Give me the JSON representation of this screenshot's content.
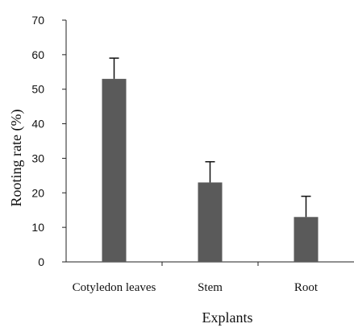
{
  "chart_data": {
    "type": "bar",
    "categories": [
      "Cotyledon leaves",
      "Stem",
      "Root"
    ],
    "values": [
      53,
      23,
      13
    ],
    "error": [
      6,
      6,
      6
    ],
    "xlabel": "Explants",
    "ylabel": "Rooting rate  (%)",
    "ylim": [
      0,
      70
    ],
    "yticks": [
      "0",
      "10",
      "20",
      "30",
      "40",
      "50",
      "60",
      "70"
    ],
    "grid": false,
    "bar_color": "#5a5a5a"
  }
}
